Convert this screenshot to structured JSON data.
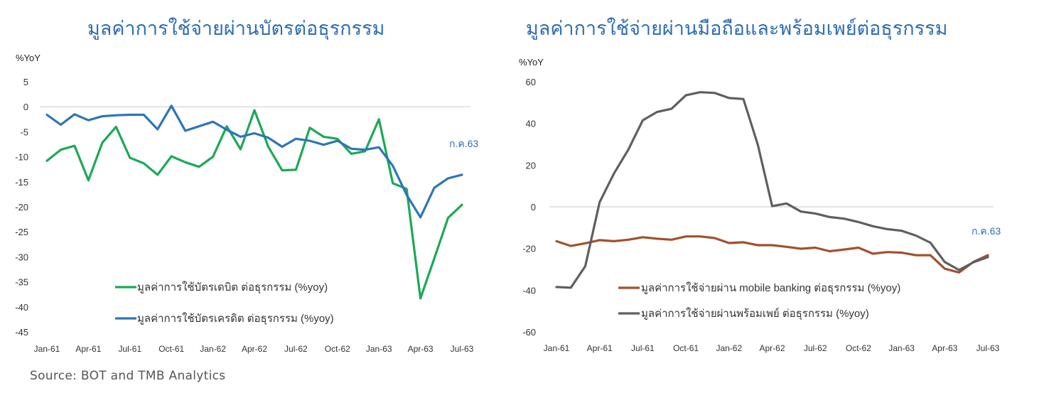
{
  "source": "Source: BOT and TMB Analytics",
  "chart_data": [
    {
      "type": "line",
      "title": "มูลค่าการใช้จ่ายผ่านบัตรต่อธุรกรรม",
      "ylabel": "%YoY",
      "ylim": [
        -45,
        5
      ],
      "yticks": [
        "5",
        "0",
        "-5",
        "-10",
        "-15",
        "-20",
        "-25",
        "-30",
        "-35",
        "-40",
        "-45"
      ],
      "xticks": [
        "Jan-61",
        "Apr-61",
        "Jul-61",
        "Oct-61",
        "Jan-62",
        "Apr-62",
        "Jul-62",
        "Oct-62",
        "Jan-63",
        "Apr-63",
        "Jul-63"
      ],
      "annotation": "ก.ค.63",
      "x": [
        "Jan-61",
        "Feb-61",
        "Mar-61",
        "Apr-61",
        "May-61",
        "Jun-61",
        "Jul-61",
        "Aug-61",
        "Sep-61",
        "Oct-61",
        "Nov-61",
        "Dec-61",
        "Jan-62",
        "Feb-62",
        "Mar-62",
        "Apr-62",
        "May-62",
        "Jun-62",
        "Jul-62",
        "Aug-62",
        "Sep-62",
        "Oct-62",
        "Nov-62",
        "Dec-62",
        "Jan-63",
        "Feb-63",
        "Mar-63",
        "Apr-63",
        "May-63",
        "Jun-63",
        "Jul-63"
      ],
      "series": [
        {
          "name": "มูลค่าการใช้บัตรเดบิต ต่อธุรกรรม (%yoy)",
          "color": "#1aaa55",
          "values": [
            -10.8,
            -8.6,
            -7.8,
            -14.7,
            -7.2,
            -4.0,
            -10.2,
            -11.3,
            -13.6,
            -9.9,
            -11.1,
            -12.0,
            -10.0,
            -3.9,
            -8.5,
            -0.7,
            -8.0,
            -12.7,
            -12.6,
            -4.2,
            -6.0,
            -6.4,
            -9.4,
            -8.9,
            -2.5,
            -15.3,
            -16.4,
            -38.3,
            -30.3,
            -22.2,
            -19.6
          ]
        },
        {
          "name": "มูลค่าการใช้บัตรเครดิต ต่อธุรกรรม (%yoy)",
          "color": "#2e75b6",
          "values": [
            -1.6,
            -3.6,
            -1.5,
            -2.7,
            -1.9,
            -1.7,
            -1.6,
            -1.6,
            -4.5,
            0.2,
            -4.8,
            -3.9,
            -3.0,
            -4.6,
            -6.0,
            -5.3,
            -6.2,
            -8.0,
            -6.4,
            -6.8,
            -7.6,
            -6.8,
            -8.4,
            -8.6,
            -8.1,
            -11.8,
            -17.6,
            -22.1,
            -16.2,
            -14.3,
            -13.6
          ]
        }
      ]
    },
    {
      "type": "line",
      "title": "มูลค่าการใช้จ่ายผ่านมือถือและพร้อมเพย์ต่อธุรกรรม",
      "ylabel": "%YoY",
      "ylim": [
        -60,
        60
      ],
      "yticks": [
        "60",
        "40",
        "20",
        "0",
        "-20",
        "-40",
        "-60"
      ],
      "xticks": [
        "Jan-61",
        "Apr-61",
        "Jul-61",
        "Oct-61",
        "Jan-62",
        "Apr-62",
        "Jul-62",
        "Oct-62",
        "Jan-63",
        "Apr-63",
        "Jul-63"
      ],
      "annotation": "ก.ค.63",
      "x": [
        "Jan-61",
        "Feb-61",
        "Mar-61",
        "Apr-61",
        "May-61",
        "Jun-61",
        "Jul-61",
        "Aug-61",
        "Sep-61",
        "Oct-61",
        "Nov-61",
        "Dec-61",
        "Jan-62",
        "Feb-62",
        "Mar-62",
        "Apr-62",
        "May-62",
        "Jun-62",
        "Jul-62",
        "Aug-62",
        "Sep-62",
        "Oct-62",
        "Nov-62",
        "Dec-62",
        "Jan-63",
        "Feb-63",
        "Mar-63",
        "Apr-63",
        "May-63",
        "Jun-63",
        "Jul-63"
      ],
      "series": [
        {
          "name": "มูลค่าการใช้จ่ายผ่าน mobile banking ต่อธุรกรรม (%yoy)",
          "color": "#a0522d",
          "values": [
            -16.5,
            -18.8,
            -17.5,
            -16.0,
            -16.5,
            -15.8,
            -14.6,
            -15.3,
            -15.8,
            -14.2,
            -14.2,
            -15.0,
            -17.4,
            -17.0,
            -18.4,
            -18.4,
            -19.2,
            -20.1,
            -19.6,
            -21.3,
            -20.5,
            -19.6,
            -22.5,
            -21.7,
            -22.0,
            -23.2,
            -23.2,
            -29.7,
            -31.5,
            -26.4,
            -23.2
          ]
        },
        {
          "name": "มูลค่าการใช้จ่ายผ่านพร้อมเพย์ ต่อธุรกรรม (%yoy)",
          "color": "#5f5f5f",
          "values": [
            -38.5,
            -38.8,
            -28.5,
            2.2,
            16.0,
            27.5,
            41.5,
            45.5,
            47.0,
            53.5,
            55.0,
            54.6,
            52.2,
            51.7,
            29.8,
            0.3,
            1.6,
            -2.3,
            -3.2,
            -4.9,
            -5.7,
            -7.3,
            -9.3,
            -10.7,
            -11.5,
            -13.8,
            -17.2,
            -26.5,
            -30.3,
            -26.6,
            -24.1
          ]
        }
      ]
    }
  ]
}
